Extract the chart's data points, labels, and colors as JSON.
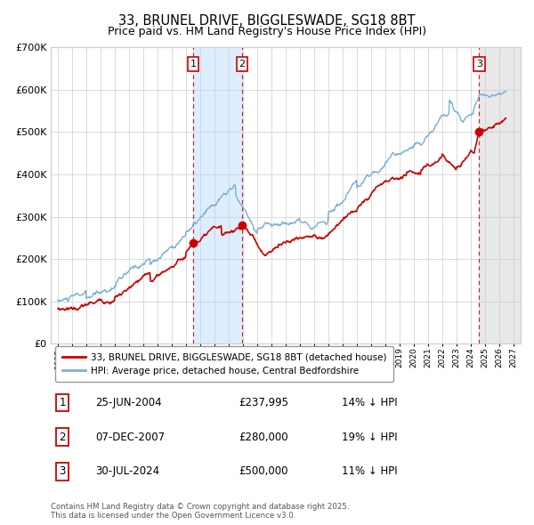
{
  "title": "33, BRUNEL DRIVE, BIGGLESWADE, SG18 8BT",
  "subtitle": "Price paid vs. HM Land Registry's House Price Index (HPI)",
  "title_fontsize": 10.5,
  "subtitle_fontsize": 9,
  "ylim": [
    0,
    700000
  ],
  "yticks": [
    0,
    100000,
    200000,
    300000,
    400000,
    500000,
    600000,
    700000
  ],
  "ytick_labels": [
    "£0",
    "£100K",
    "£200K",
    "£300K",
    "£400K",
    "£500K",
    "£600K",
    "£700K"
  ],
  "xlim_start": 1994.5,
  "xlim_end": 2027.5,
  "sale_years": [
    2004.483,
    2007.927,
    2024.576
  ],
  "sale_prices": [
    237995,
    280000,
    500000
  ],
  "sale_labels": [
    "1",
    "2",
    "3"
  ],
  "shaded_region": [
    2004.483,
    2007.927
  ],
  "hatch_start": 2024.576,
  "red_line_color": "#cc0000",
  "blue_line_color": "#7ab0d4",
  "shade_color": "#ddeeff",
  "hatch_fill_color": "#e8e8e8",
  "legend_labels": [
    "33, BRUNEL DRIVE, BIGGLESWADE, SG18 8BT (detached house)",
    "HPI: Average price, detached house, Central Bedfordshire"
  ],
  "table_rows": [
    {
      "label": "1",
      "date": "25-JUN-2004",
      "price": "£237,995",
      "hpi": "14% ↓ HPI"
    },
    {
      "label": "2",
      "date": "07-DEC-2007",
      "price": "£280,000",
      "hpi": "19% ↓ HPI"
    },
    {
      "label": "3",
      "date": "30-JUL-2024",
      "price": "£500,000",
      "hpi": "11% ↓ HPI"
    }
  ],
  "footer": "Contains HM Land Registry data © Crown copyright and database right 2025.\nThis data is licensed under the Open Government Licence v3.0.",
  "background_color": "#ffffff",
  "plot_bg_color": "#ffffff",
  "grid_color": "#cccccc"
}
